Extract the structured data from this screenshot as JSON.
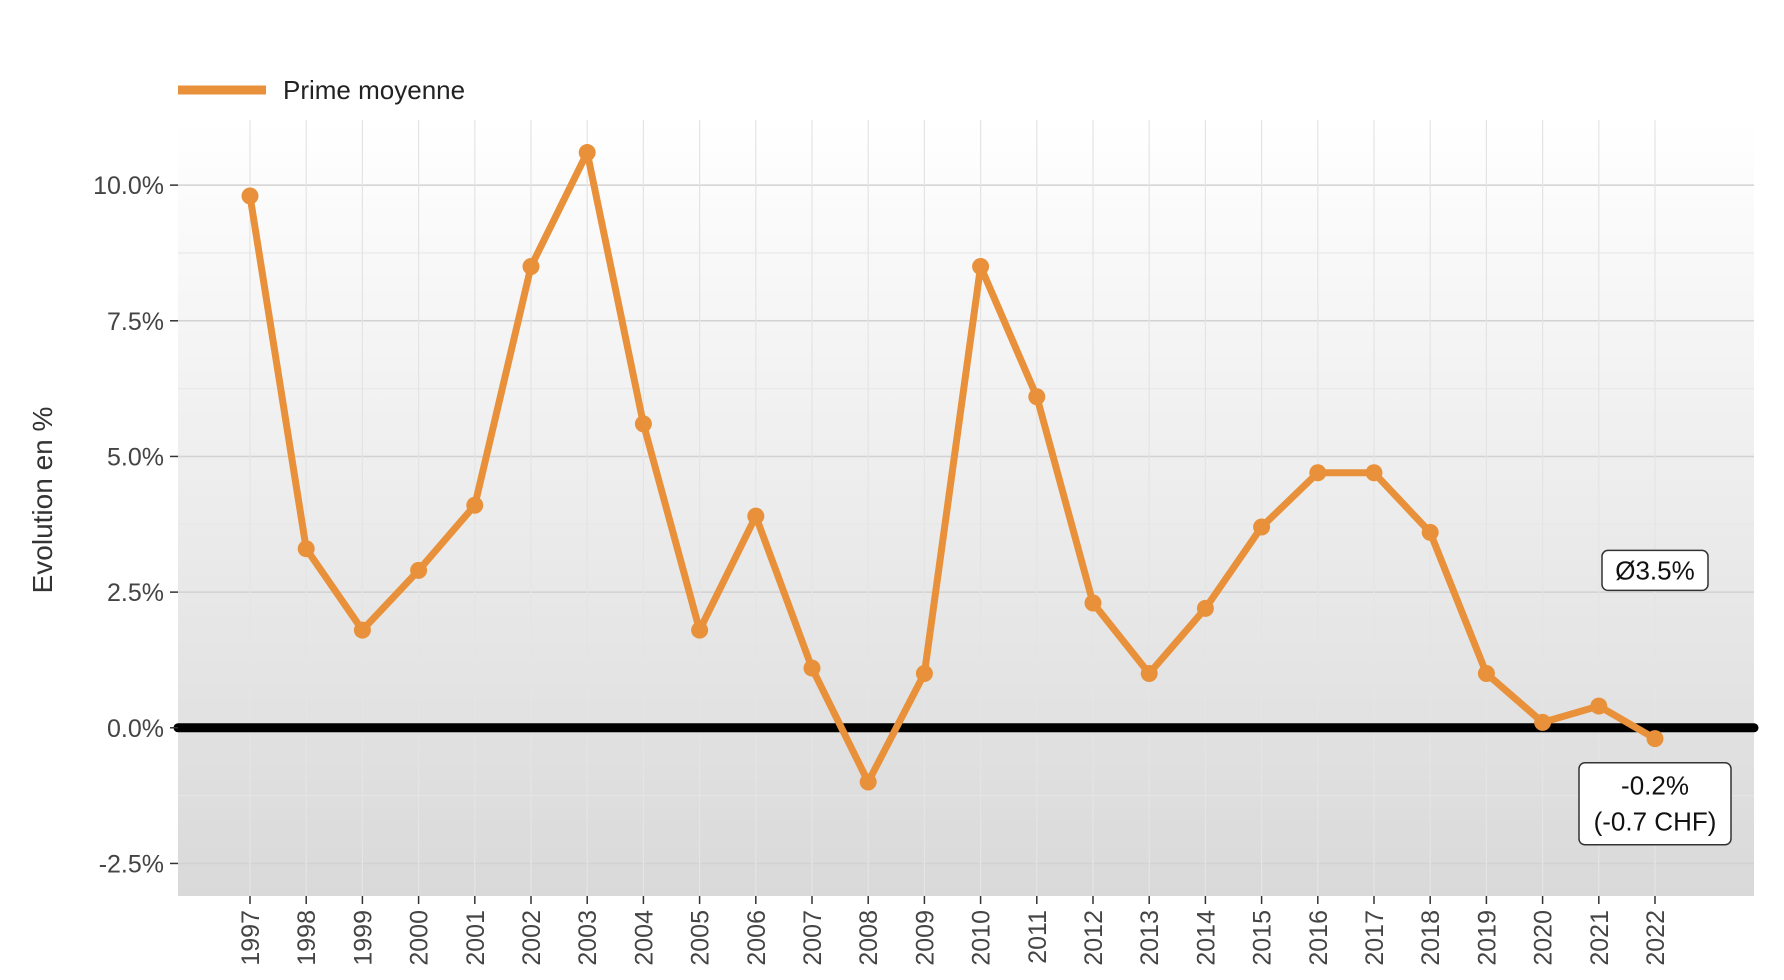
{
  "chart_data": {
    "type": "line",
    "title": "",
    "xlabel": "",
    "ylabel": "Evolution en %",
    "ylim": [
      -3.1,
      11.2
    ],
    "y_ticks": [
      -2.5,
      0.0,
      2.5,
      5.0,
      7.5,
      10.0
    ],
    "y_tick_labels": [
      "-2.5%",
      "0.0%",
      "2.5%",
      "5.0%",
      "7.5%",
      "10.0%"
    ],
    "grid": true,
    "legend_position": "top-left",
    "zero_line": 0.0,
    "categories": [
      "1997",
      "1998",
      "1999",
      "2000",
      "2001",
      "2002",
      "2003",
      "2004",
      "2005",
      "2006",
      "2007",
      "2008",
      "2009",
      "2010",
      "2011",
      "2012",
      "2013",
      "2014",
      "2015",
      "2016",
      "2017",
      "2018",
      "2019",
      "2020",
      "2021",
      "2022"
    ],
    "series": [
      {
        "name": "Prime moyenne",
        "color": "#E8913A",
        "values": [
          9.8,
          3.3,
          1.8,
          2.9,
          4.1,
          8.5,
          10.6,
          5.6,
          1.8,
          3.9,
          1.1,
          -1.0,
          1.0,
          8.5,
          6.1,
          2.3,
          1.0,
          2.2,
          3.7,
          4.7,
          4.7,
          3.6,
          1.0,
          0.1,
          0.4,
          -0.2
        ]
      }
    ],
    "annotations": [
      {
        "text": "Ø3.5%",
        "x": "2022",
        "y": 2.9
      },
      {
        "text": "-0.2%",
        "text2": "(-0.7 CHF)",
        "x": "2022",
        "y": -1.4
      }
    ]
  }
}
